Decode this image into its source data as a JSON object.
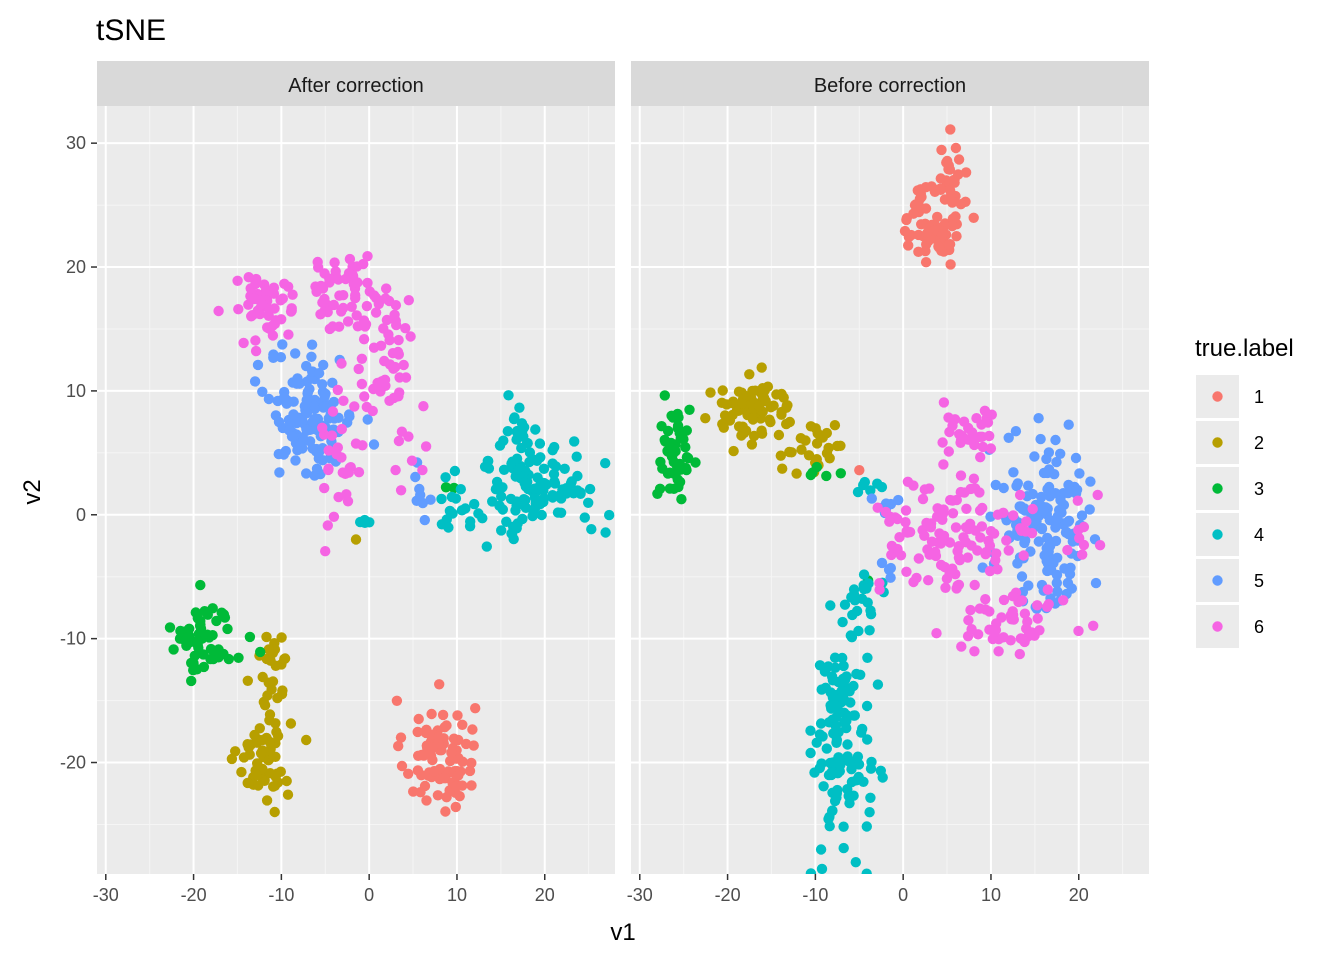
{
  "chart_data": {
    "type": "scatter",
    "title": "tSNE",
    "xlabel": "v1",
    "ylabel": "v2",
    "xlim": [
      -31,
      28
    ],
    "ylim": [
      -29,
      33
    ],
    "xticks": [
      -30,
      -20,
      -10,
      0,
      10,
      20
    ],
    "yticks": [
      -20,
      -10,
      0,
      10,
      20,
      30
    ],
    "grid": true,
    "legend": {
      "title": "true.label",
      "position": "right",
      "entries": [
        {
          "label": "1",
          "color": "#F8766D"
        },
        {
          "label": "2",
          "color": "#B79F00"
        },
        {
          "label": "3",
          "color": "#00BA38"
        },
        {
          "label": "4",
          "color": "#00BFC4"
        },
        {
          "label": "5",
          "color": "#619CFF"
        },
        {
          "label": "6",
          "color": "#F564E3"
        }
      ]
    },
    "panels": [
      {
        "name": "After correction",
        "clusters": [
          {
            "label": "1",
            "cx": 8,
            "cy": -19.5,
            "sx": 2.0,
            "sy": 2.3,
            "n": 90
          },
          {
            "label": "2",
            "cx": -12,
            "cy": -19.5,
            "sx": 1.5,
            "sy": 1.7,
            "n": 60
          },
          {
            "label": "2",
            "cx": -11,
            "cy": -12.5,
            "sx": 1.0,
            "sy": 2.2,
            "n": 25
          },
          {
            "label": "2",
            "cx": -1.5,
            "cy": -2,
            "sx": 0.2,
            "sy": 0.2,
            "n": 1
          },
          {
            "label": "3",
            "cx": -19,
            "cy": -10,
            "sx": 1.7,
            "sy": 1.6,
            "n": 55
          },
          {
            "label": "3",
            "cx": -13.5,
            "cy": -11,
            "sx": 1.0,
            "sy": 0.8,
            "n": 3
          },
          {
            "label": "3",
            "cx": 9.5,
            "cy": 2.2,
            "sx": 0.3,
            "sy": 0.2,
            "n": 2
          },
          {
            "label": "4",
            "cx": 19,
            "cy": 2,
            "sx": 3.8,
            "sy": 2.0,
            "n": 120
          },
          {
            "label": "4",
            "cx": 16.5,
            "cy": 6.5,
            "sx": 1.3,
            "sy": 1.2,
            "n": 18
          },
          {
            "label": "4",
            "cx": 10,
            "cy": 0.5,
            "sx": 1.2,
            "sy": 0.9,
            "n": 10
          },
          {
            "label": "4",
            "cx": -0.5,
            "cy": -0.4,
            "sx": 0.5,
            "sy": 0.3,
            "n": 4
          },
          {
            "label": "5",
            "cx": -6.5,
            "cy": 8,
            "sx": 2.4,
            "sy": 2.6,
            "n": 130
          },
          {
            "label": "5",
            "cx": 6,
            "cy": 1.5,
            "sx": 0.8,
            "sy": 0.9,
            "n": 8
          },
          {
            "label": "6",
            "cx": -12.5,
            "cy": 16.5,
            "sx": 1.6,
            "sy": 1.6,
            "n": 40
          },
          {
            "label": "6",
            "cx": -9,
            "cy": 17.5,
            "sx": 1.0,
            "sy": 0.9,
            "n": 12
          },
          {
            "label": "6",
            "cx": -2.5,
            "cy": 18,
            "sx": 2.6,
            "sy": 1.5,
            "n": 60
          },
          {
            "label": "6",
            "cx": 2,
            "cy": 11.5,
            "sx": 1.8,
            "sy": 2.3,
            "n": 40
          },
          {
            "label": "6",
            "cx": -3,
            "cy": 5,
            "sx": 1.3,
            "sy": 3.2,
            "n": 30
          },
          {
            "label": "6",
            "cx": 4.5,
            "cy": 4.5,
            "sx": 0.9,
            "sy": 1.4,
            "n": 8
          }
        ]
      },
      {
        "name": "Before correction",
        "clusters": [
          {
            "label": "1",
            "cx": 3.5,
            "cy": 23.5,
            "sx": 1.6,
            "sy": 1.7,
            "n": 70
          },
          {
            "label": "1",
            "cx": 5.5,
            "cy": 27.5,
            "sx": 0.9,
            "sy": 1.4,
            "n": 25
          },
          {
            "label": "1",
            "cx": -5,
            "cy": 3.6,
            "sx": 0.3,
            "sy": 0.2,
            "n": 1
          },
          {
            "label": "2",
            "cx": -17,
            "cy": 8.5,
            "sx": 2.4,
            "sy": 1.2,
            "n": 80
          },
          {
            "label": "2",
            "cx": -10,
            "cy": 5.5,
            "sx": 2.0,
            "sy": 1.1,
            "n": 25
          },
          {
            "label": "3",
            "cx": -26,
            "cy": 4.5,
            "sx": 0.9,
            "sy": 2.1,
            "n": 55
          },
          {
            "label": "3",
            "cx": -8.5,
            "cy": 3.5,
            "sx": 1.0,
            "sy": 0.4,
            "n": 5
          },
          {
            "label": "3",
            "cx": -4,
            "cy": -5.3,
            "sx": 0.3,
            "sy": 0.2,
            "n": 1
          },
          {
            "label": "4",
            "cx": -7,
            "cy": -18,
            "sx": 1.6,
            "sy": 4.8,
            "n": 130
          },
          {
            "label": "4",
            "cx": -4,
            "cy": -7,
            "sx": 0.9,
            "sy": 2.0,
            "n": 14
          },
          {
            "label": "4",
            "cx": -4,
            "cy": 2,
            "sx": 1.0,
            "sy": 0.6,
            "n": 6
          },
          {
            "label": "5",
            "cx": 16,
            "cy": 0.5,
            "sx": 2.8,
            "sy": 2.8,
            "n": 120
          },
          {
            "label": "5",
            "cx": 17,
            "cy": -5.5,
            "sx": 1.9,
            "sy": 1.3,
            "n": 25
          },
          {
            "label": "5",
            "cx": -2,
            "cy": 0.5,
            "sx": 1.1,
            "sy": 0.5,
            "n": 8
          },
          {
            "label": "5",
            "cx": -2,
            "cy": -4,
            "sx": 0.4,
            "sy": 0.6,
            "n": 4
          },
          {
            "label": "6",
            "cx": 8,
            "cy": 6.5,
            "sx": 2.0,
            "sy": 1.2,
            "n": 30
          },
          {
            "label": "6",
            "cx": 6,
            "cy": -2,
            "sx": 4.5,
            "sy": 2.5,
            "n": 110
          },
          {
            "label": "6",
            "cx": 13,
            "cy": -8.5,
            "sx": 3.5,
            "sy": 1.2,
            "n": 45
          },
          {
            "label": "6",
            "cx": 20,
            "cy": -1,
            "sx": 0.9,
            "sy": 1.8,
            "n": 10
          },
          {
            "label": "6",
            "cx": 0,
            "cy": -0.5,
            "sx": 1.2,
            "sy": 0.8,
            "n": 8
          }
        ]
      }
    ]
  }
}
